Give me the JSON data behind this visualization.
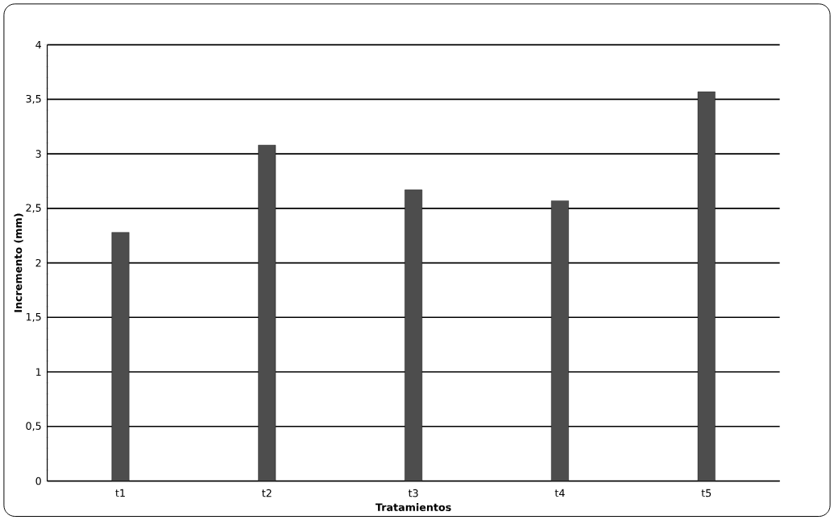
{
  "chart_data": {
    "type": "bar",
    "xlabel": "Tratamientos",
    "ylabel": "Incremento (mm)",
    "categories": [
      "t1",
      "t2",
      "t3",
      "t4",
      "t5"
    ],
    "values": [
      2.28,
      3.08,
      2.67,
      2.57,
      3.57
    ],
    "color": "#4d4d4d",
    "ylim": [
      0,
      4
    ],
    "yticks": [
      0,
      {
        "value": 0.5,
        "label": "0,5"
      },
      1,
      {
        "value": 1.5,
        "label": "1,5"
      },
      2,
      {
        "value": 2.5,
        "label": "2,5"
      },
      3,
      {
        "value": 3.5,
        "label": "3,5"
      },
      4
    ],
    "grid": "y"
  }
}
